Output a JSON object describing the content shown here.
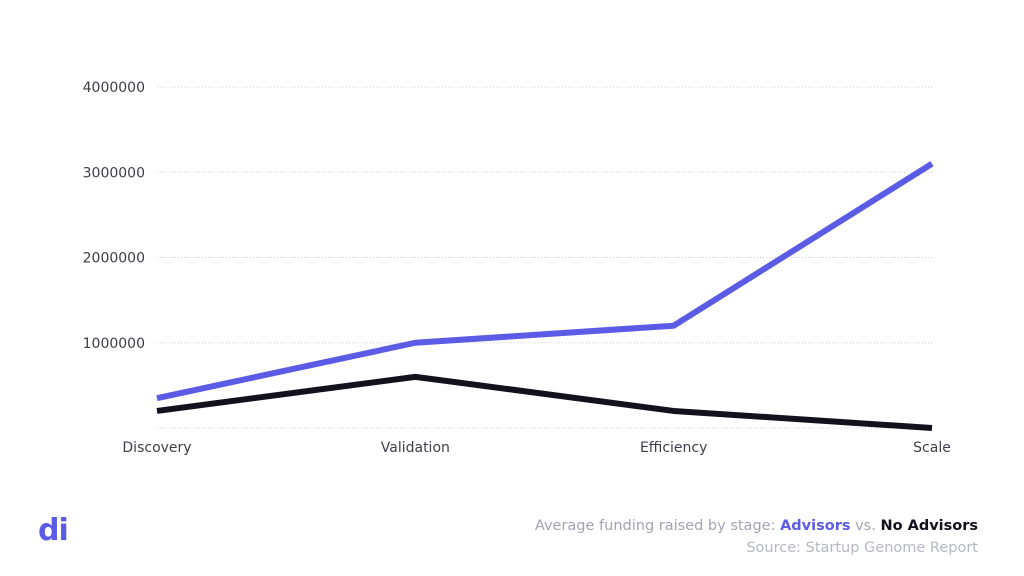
{
  "chart_data": {
    "type": "line",
    "categories": [
      "Discovery",
      "Validation",
      "Efficiency",
      "Scale"
    ],
    "series": [
      {
        "name": "Advisors",
        "color": "#5b5be6",
        "values": [
          350000,
          1000000,
          1200000,
          3100000
        ]
      },
      {
        "name": "No Advisors",
        "color": "#14111f",
        "values": [
          200000,
          600000,
          200000,
          0
        ]
      }
    ],
    "y_ticks": [
      1000000,
      2000000,
      3000000,
      4000000
    ],
    "y_tick_labels": [
      "1000000",
      "2000000",
      "3000000",
      "4000000"
    ],
    "ylim": [
      0,
      4000000
    ],
    "grid": true,
    "grid_style": "dotted horizontal"
  },
  "caption": {
    "prefix": "Average funding raised by stage: ",
    "advisors": "Advisors",
    "vs": " vs. ",
    "no_advisors": "No Advisors",
    "source": "Source: Startup Genome Report"
  },
  "logo": {
    "text": "di"
  },
  "colors": {
    "accent": "#5b5be6",
    "dark": "#14111f",
    "muted": "#a3a3b2"
  }
}
